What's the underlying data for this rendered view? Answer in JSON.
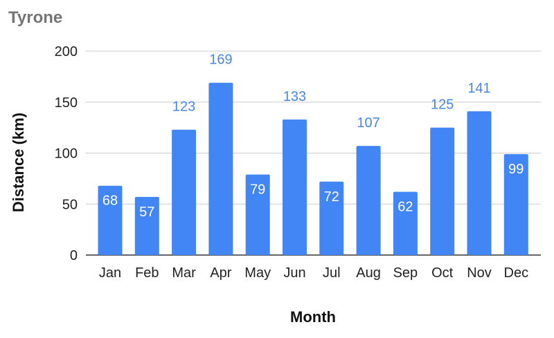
{
  "chart_data": {
    "type": "bar",
    "title": "Tyrone",
    "xlabel": "Month",
    "ylabel": "Distance (km)",
    "categories": [
      "Jan",
      "Feb",
      "Mar",
      "Apr",
      "May",
      "Jun",
      "Jul",
      "Aug",
      "Sep",
      "Oct",
      "Nov",
      "Dec"
    ],
    "values": [
      68,
      57,
      123,
      169,
      79,
      133,
      72,
      107,
      62,
      125,
      141,
      99
    ],
    "data_labels": [
      "68",
      "57",
      "123",
      "169",
      "79",
      "133",
      "72",
      "107",
      "62",
      "125",
      "141",
      "99"
    ],
    "yticks": [
      "0",
      "50",
      "100",
      "150",
      "200"
    ],
    "ylim": [
      0,
      200
    ],
    "grid": true,
    "legend": "none",
    "bar_color": "#4285F4",
    "label_inside_color": "#ffffff",
    "label_outside_color": "#4a86e8",
    "gridline_color": "#cccccc"
  }
}
